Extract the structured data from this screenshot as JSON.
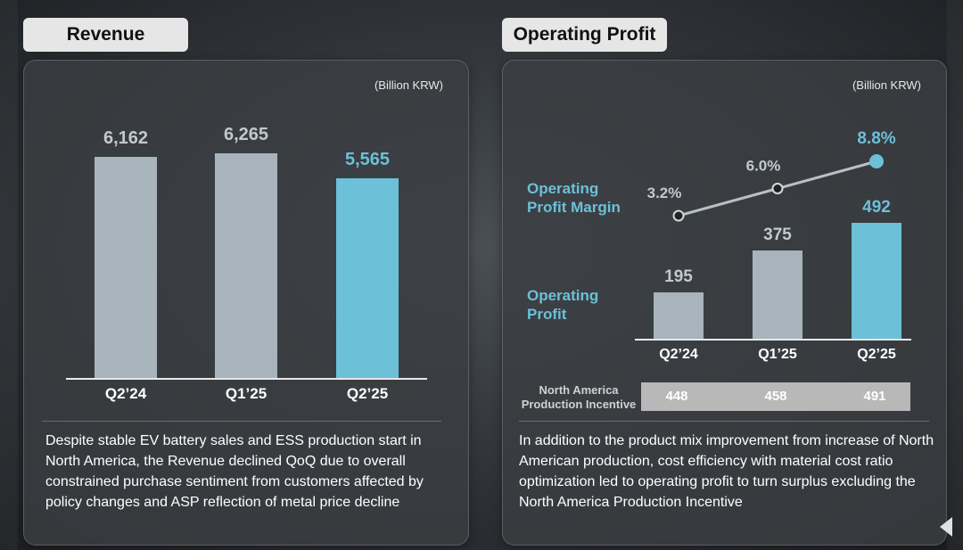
{
  "revenue": {
    "tab_label": "Revenue",
    "unit": "(Billion KRW)",
    "description": "Despite stable EV battery sales and ESS production start in North America, the Revenue declined QoQ due to overall constrained purchase sentiment from customers affected by policy changes and ASP reflection of metal price decline"
  },
  "operating_profit": {
    "tab_label": "Operating Profit",
    "unit": "(Billion KRW)",
    "margin_label": "Operating Profit Margin",
    "profit_label": "Operating Profit",
    "incentive_label": "North America Production Incentive",
    "incentive_values": [
      "448",
      "458",
      "491"
    ],
    "description": "In addition to the product mix improvement from increase of North American production, cost efficiency with material cost ratio optimization led to operating profit to turn surplus excluding the North America Production Incentive"
  },
  "colors": {
    "bar_grey": "#a8b4bc",
    "bar_highlight": "#6cc0d8",
    "value_grey": "#c2c9ce",
    "value_highlight": "#6cc0d8"
  },
  "icons": {
    "nav": "triangle-left-icon"
  },
  "chart_data": [
    {
      "type": "bar",
      "title": "Revenue",
      "unit": "(Billion KRW)",
      "categories": [
        "Q2’24",
        "Q1’25",
        "Q2’25"
      ],
      "values": [
        6162,
        6265,
        5565
      ],
      "value_labels": [
        "6,162",
        "6,265",
        "5,565"
      ],
      "highlight_index": 2
    },
    {
      "type": "bar",
      "title": "Operating Profit",
      "unit": "(Billion KRW)",
      "categories": [
        "Q2’24",
        "Q1’25",
        "Q2’25"
      ],
      "series": [
        {
          "name": "Operating Profit",
          "values": [
            195,
            375,
            492
          ],
          "value_labels": [
            "195",
            "375",
            "492"
          ]
        },
        {
          "name": "Operating Profit Margin",
          "type": "line",
          "values": [
            3.2,
            6.0,
            8.8
          ],
          "value_labels": [
            "3.2%",
            "6.0%",
            "8.8%"
          ]
        }
      ],
      "highlight_index": 2
    }
  ]
}
